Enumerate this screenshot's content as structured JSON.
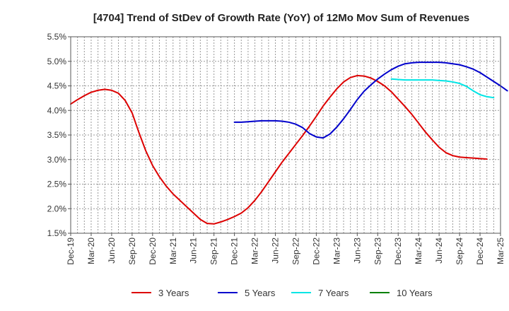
{
  "chart_data": {
    "type": "line",
    "title": "[4704]  Trend of StDev of Growth Rate (YoY) of 12Mo Mov Sum of Revenues",
    "xlabel": "",
    "ylabel": "",
    "ylim": [
      1.5,
      5.5
    ],
    "yticks": [
      1.5,
      2.0,
      2.5,
      3.0,
      3.5,
      4.0,
      4.5,
      5.0,
      5.5
    ],
    "ytick_labels": [
      "1.5%",
      "2.0%",
      "2.5%",
      "3.0%",
      "3.5%",
      "4.0%",
      "4.5%",
      "5.0%",
      "5.5%"
    ],
    "x_range_months": [
      0,
      63
    ],
    "x_ticks": [
      {
        "label": "Dec-19",
        "month": 0
      },
      {
        "label": "Mar-20",
        "month": 3
      },
      {
        "label": "Jun-20",
        "month": 6
      },
      {
        "label": "Sep-20",
        "month": 9
      },
      {
        "label": "Dec-20",
        "month": 12
      },
      {
        "label": "Mar-21",
        "month": 15
      },
      {
        "label": "Jun-21",
        "month": 18
      },
      {
        "label": "Sep-21",
        "month": 21
      },
      {
        "label": "Dec-21",
        "month": 24
      },
      {
        "label": "Mar-22",
        "month": 27
      },
      {
        "label": "Jun-22",
        "month": 30
      },
      {
        "label": "Sep-22",
        "month": 33
      },
      {
        "label": "Dec-22",
        "month": 36
      },
      {
        "label": "Mar-23",
        "month": 39
      },
      {
        "label": "Jun-23",
        "month": 42
      },
      {
        "label": "Sep-23",
        "month": 45
      },
      {
        "label": "Dec-23",
        "month": 48
      },
      {
        "label": "Mar-24",
        "month": 51
      },
      {
        "label": "Jun-24",
        "month": 54
      },
      {
        "label": "Sep-24",
        "month": 57
      },
      {
        "label": "Dec-24",
        "month": 60
      },
      {
        "label": "Mar-25",
        "month": 63
      }
    ],
    "grid": true,
    "legend_position": "bottom",
    "series": [
      {
        "name": "3 Years",
        "color": "#dd0000",
        "start_month": 0,
        "values": [
          4.13,
          4.22,
          4.3,
          4.37,
          4.41,
          4.43,
          4.41,
          4.35,
          4.2,
          3.95,
          3.55,
          3.18,
          2.88,
          2.65,
          2.46,
          2.3,
          2.17,
          2.04,
          1.91,
          1.78,
          1.7,
          1.69,
          1.73,
          1.78,
          1.84,
          1.91,
          2.02,
          2.17,
          2.35,
          2.55,
          2.75,
          2.95,
          3.13,
          3.31,
          3.49,
          3.68,
          3.88,
          4.09,
          4.27,
          4.44,
          4.58,
          4.67,
          4.71,
          4.7,
          4.66,
          4.59,
          4.5,
          4.38,
          4.23,
          4.08,
          3.92,
          3.74,
          3.56,
          3.4,
          3.25,
          3.14,
          3.08,
          3.05,
          3.04,
          3.03,
          3.02,
          3.01
        ]
      },
      {
        "name": "5 Years",
        "color": "#0000cc",
        "start_month": 24,
        "values": [
          3.76,
          3.76,
          3.77,
          3.78,
          3.79,
          3.79,
          3.79,
          3.78,
          3.76,
          3.72,
          3.65,
          3.53,
          3.46,
          3.44,
          3.52,
          3.66,
          3.83,
          4.02,
          4.22,
          4.39,
          4.52,
          4.64,
          4.74,
          4.83,
          4.9,
          4.95,
          4.97,
          4.98,
          4.98,
          4.98,
          4.98,
          4.97,
          4.95,
          4.93,
          4.89,
          4.84,
          4.77,
          4.68,
          4.59,
          4.5,
          4.4
        ]
      },
      {
        "name": "7 Years",
        "color": "#00e5e5",
        "start_month": 47,
        "values": [
          4.64,
          4.63,
          4.62,
          4.62,
          4.62,
          4.62,
          4.62,
          4.61,
          4.6,
          4.58,
          4.55,
          4.49,
          4.4,
          4.32,
          4.28,
          4.26
        ]
      },
      {
        "name": "10 Years",
        "color": "#008000",
        "start_month": 0,
        "values": []
      }
    ]
  }
}
